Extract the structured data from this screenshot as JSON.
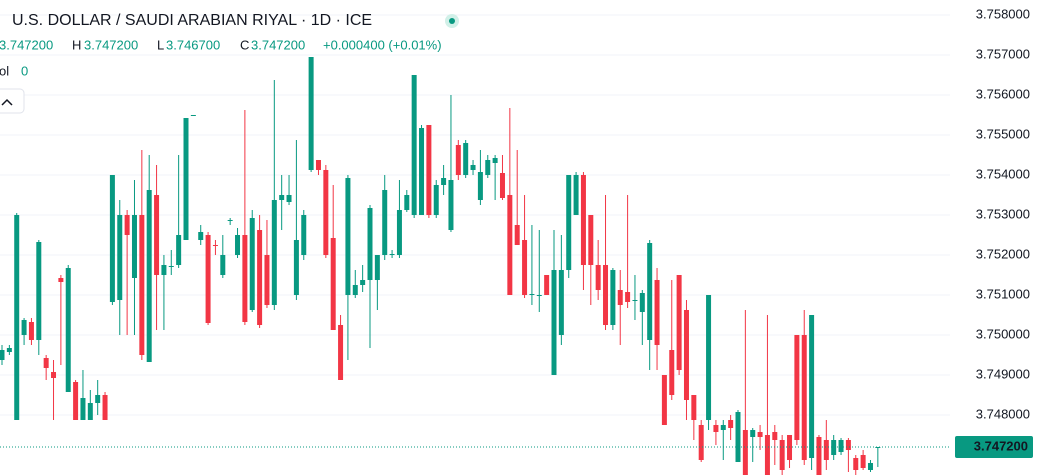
{
  "chart_data": {
    "type": "candlestick",
    "title": "U.S. DOLLAR / SAUDI ARABIAN RIYAL · 1D · ICE",
    "legend": {
      "open": "3.747200",
      "high_label": "H",
      "high": "3.747200",
      "low_label": "L",
      "low": "3.746700",
      "close_label": "C",
      "close": "3.747200",
      "change": "+0.000400 (+0.01%)"
    },
    "volume": {
      "label": "ol",
      "value": "0"
    },
    "up_color": "#089981",
    "down_color": "#f23645",
    "ylim": [
      3.7465,
      3.758375
    ],
    "yticks": [
      {
        "value": 3.758,
        "label": "3.758000"
      },
      {
        "value": 3.757,
        "label": "3.757000"
      },
      {
        "value": 3.756,
        "label": "3.756000"
      },
      {
        "value": 3.755,
        "label": "3.755000"
      },
      {
        "value": 3.754,
        "label": "3.754000"
      },
      {
        "value": 3.753,
        "label": "3.753000"
      },
      {
        "value": 3.752,
        "label": "3.752000"
      },
      {
        "value": 3.751,
        "label": "3.751000"
      },
      {
        "value": 3.75,
        "label": "3.750000"
      },
      {
        "value": 3.749,
        "label": "3.749000"
      },
      {
        "value": 3.748,
        "label": "3.748000"
      }
    ],
    "last_price": {
      "value": 3.7472,
      "label": "3.747200"
    },
    "grid": true,
    "ohlc": [
      [
        3.749375,
        3.74975,
        3.74925,
        3.749625
      ],
      [
        3.749575,
        3.74975,
        3.7495,
        3.749675
      ],
      [
        3.747875,
        3.75305,
        3.747875,
        3.753
      ],
      [
        3.75,
        3.750425,
        3.74975,
        3.750375
      ],
      [
        3.750325,
        3.750425,
        3.74975,
        3.749875
      ],
      [
        3.749875,
        3.752375,
        3.7495,
        3.752325
      ],
      [
        3.749425,
        3.7495,
        3.748875,
        3.749175
      ],
      [
        3.749075,
        3.749375,
        3.747875,
        3.748925
      ],
      [
        3.751425,
        3.7515,
        3.74925,
        3.751325
      ],
      [
        3.748575,
        3.75175,
        3.748575,
        3.751675
      ],
      [
        3.748825,
        3.748875,
        3.747875,
        3.747875
      ],
      [
        3.747875,
        3.749125,
        3.747875,
        3.748425
      ],
      [
        3.747875,
        3.748625,
        3.747875,
        3.7483
      ],
      [
        3.7483,
        3.748875,
        3.748,
        3.7485
      ],
      [
        3.7485,
        3.748575,
        3.747875,
        3.747875
      ],
      [
        3.750825,
        3.754,
        3.75075,
        3.754
      ],
      [
        3.750875,
        3.753375,
        3.75,
        3.753
      ],
      [
        3.753,
        3.753125,
        3.75,
        3.7525
      ],
      [
        3.751425,
        3.753875,
        3.75,
        3.753
      ],
      [
        3.753,
        3.754625,
        3.749375,
        3.7495
      ],
      [
        3.749325,
        3.7545,
        3.749325,
        3.753625
      ],
      [
        3.7535,
        3.75425,
        3.750125,
        3.7515
      ],
      [
        3.7515,
        3.752,
        3.750125,
        3.75175
      ],
      [
        3.7517,
        3.752125,
        3.7515,
        3.751725
      ],
      [
        3.75175,
        3.7545,
        3.751675,
        3.7525
      ],
      [
        3.752375,
        3.755425,
        3.752375,
        3.755425
      ],
      [
        3.7555,
        3.7555,
        3.755475,
        3.7555
      ],
      [
        3.752375,
        3.75275,
        3.75225,
        3.752575
      ],
      [
        3.7525,
        3.752575,
        3.75025,
        3.7503
      ],
      [
        3.75225,
        3.752375,
        3.752,
        3.752225
      ],
      [
        3.7515,
        3.7525,
        3.751425,
        3.752
      ],
      [
        3.752875,
        3.752925,
        3.75275,
        3.752875
      ],
      [
        3.752,
        3.752675,
        3.751925,
        3.7525
      ],
      [
        3.7525,
        3.755625,
        3.75025,
        3.750325
      ],
      [
        3.750625,
        3.753125,
        3.750575,
        3.752925
      ],
      [
        3.752625,
        3.753,
        3.750175,
        3.75025
      ],
      [
        3.752,
        3.752875,
        3.750675,
        3.75075
      ],
      [
        3.75075,
        3.756375,
        3.750625,
        3.753375
      ],
      [
        3.753375,
        3.754,
        3.752625,
        3.7535
      ],
      [
        3.753325,
        3.754,
        3.75325,
        3.7535
      ],
      [
        3.751,
        3.754875,
        3.750875,
        3.752375
      ],
      [
        3.752,
        3.753125,
        3.751875,
        3.753
      ],
      [
        3.754125,
        3.75695,
        3.754075,
        3.75695
      ],
      [
        3.754375,
        3.754375,
        3.754,
        3.754125
      ],
      [
        3.754125,
        3.75425,
        3.751925,
        3.752
      ],
      [
        3.752425,
        3.75375,
        3.750125,
        3.750125
      ],
      [
        3.75025,
        3.7505,
        3.748875,
        3.748875
      ],
      [
        3.751,
        3.754,
        3.749375,
        3.753925
      ],
      [
        3.751,
        3.751625,
        3.750925,
        3.75125
      ],
      [
        3.75125,
        3.75175,
        3.751075,
        3.751375
      ],
      [
        3.751375,
        3.75325,
        3.749675,
        3.753175
      ],
      [
        3.751375,
        3.752,
        3.750625,
        3.752
      ],
      [
        3.752,
        3.754,
        3.751875,
        3.753625
      ],
      [
        3.752,
        3.752125,
        3.751925,
        3.752025
      ],
      [
        3.752,
        3.753875,
        3.751925,
        3.753125
      ],
      [
        3.753125,
        3.753625,
        3.753075,
        3.7535
      ],
      [
        3.753,
        3.7565,
        3.752925,
        3.7565
      ],
      [
        3.753,
        3.75525,
        3.753,
        3.755175
      ],
      [
        3.75525,
        3.75525,
        3.752925,
        3.753
      ],
      [
        3.753,
        3.753875,
        3.752925,
        3.75375
      ],
      [
        3.75375,
        3.75425,
        3.7535,
        3.753925
      ],
      [
        3.752625,
        3.756,
        3.752575,
        3.753875
      ],
      [
        3.75475,
        3.754875,
        3.753875,
        3.754
      ],
      [
        3.754,
        3.754875,
        3.753925,
        3.7548
      ],
      [
        3.754125,
        3.754375,
        3.754,
        3.75425
      ],
      [
        3.753375,
        3.754625,
        3.75325,
        3.754075
      ],
      [
        3.754,
        3.7545,
        3.753925,
        3.754375
      ],
      [
        3.7543,
        3.7545,
        3.753375,
        3.754425
      ],
      [
        3.75405,
        3.7545,
        3.753375,
        3.753425
      ],
      [
        3.7535,
        3.755675,
        3.751,
        3.751
      ],
      [
        3.75275,
        3.754625,
        3.75225,
        3.75225
      ],
      [
        3.752375,
        3.7535,
        3.750925,
        3.751
      ],
      [
        3.751,
        3.75275,
        3.75075,
        3.751025
      ],
      [
        3.751,
        3.752625,
        3.750575,
        3.751
      ],
      [
        3.7515,
        3.7515,
        3.751,
        3.751
      ],
      [
        3.749,
        3.752625,
        3.749,
        3.751625
      ],
      [
        3.75,
        3.7525,
        3.74975,
        3.751625
      ],
      [
        3.751625,
        3.754,
        3.751425,
        3.754
      ],
      [
        3.753,
        3.754075,
        3.753,
        3.754
      ],
      [
        3.754,
        3.754075,
        3.751125,
        3.75175
      ],
      [
        3.753,
        3.753,
        3.75075,
        3.75175
      ],
      [
        3.75175,
        3.752375,
        3.750875,
        3.751125
      ],
      [
        3.75175,
        3.7535,
        3.750125,
        3.75025
      ],
      [
        3.75025,
        3.751675,
        3.750125,
        3.751625
      ],
      [
        3.751125,
        3.751625,
        3.74975,
        3.75075
      ],
      [
        3.751075,
        3.7535,
        3.750675,
        3.750825
      ],
      [
        3.750875,
        3.7515,
        3.750375,
        3.750875
      ],
      [
        3.750575,
        3.751125,
        3.74975,
        3.75105
      ],
      [
        3.749875,
        3.752375,
        3.749125,
        3.7523
      ],
      [
        3.751375,
        3.751675,
        3.749125,
        3.74975
      ],
      [
        3.749,
        3.749,
        3.74775,
        3.74775
      ],
      [
        3.749625,
        3.751375,
        3.748375,
        3.7485
      ],
      [
        3.7515,
        3.7515,
        3.749,
        3.749125
      ],
      [
        3.750625,
        3.750875,
        3.747875,
        3.748375
      ],
      [
        3.7485,
        3.7485,
        3.747375,
        3.747875
      ],
      [
        3.74775,
        3.747875,
        3.746825,
        3.746875
      ],
      [
        3.747875,
        3.751,
        3.747625,
        3.751
      ],
      [
        3.74775,
        3.747875,
        3.74725,
        3.747575
      ],
      [
        3.747625,
        3.747875,
        3.746875,
        3.74775
      ],
      [
        3.747875,
        3.748,
        3.747375,
        3.747675
      ],
      [
        3.746825,
        3.748125,
        3.746825,
        3.748075
      ],
      [
        3.747625,
        3.750625,
        3.7465,
        3.7465
      ],
      [
        3.74745,
        3.747675,
        3.746825,
        3.747625
      ],
      [
        3.747575,
        3.74775,
        3.747125,
        3.74745
      ],
      [
        3.7475,
        3.7505,
        3.7465,
        3.7465
      ],
      [
        3.747575,
        3.74775,
        3.74675,
        3.747375
      ],
      [
        3.747375,
        3.7475,
        3.7465,
        3.746625
      ],
      [
        3.7475,
        3.7475,
        3.746675,
        3.746875
      ],
      [
        3.75,
        3.75,
        3.74725,
        3.747375
      ],
      [
        3.75,
        3.750625,
        3.74675,
        3.746875
      ],
      [
        3.746925,
        3.7505,
        3.746625,
        3.7505
      ],
      [
        3.74745,
        3.7475,
        3.7465,
        3.7465
      ],
      [
        3.747375,
        3.747875,
        3.746625,
        3.746875
      ],
      [
        3.747,
        3.7475,
        3.746875,
        3.747375
      ],
      [
        3.747075,
        3.747425,
        3.747,
        3.747375
      ],
      [
        3.747375,
        3.747425,
        3.746575,
        3.747125
      ],
      [
        3.746925,
        3.747,
        3.7465,
        3.746625
      ],
      [
        3.747,
        3.747125,
        3.746625,
        3.746675
      ],
      [
        3.746625,
        3.746875,
        3.746575,
        3.7468
      ],
      [
        3.7472,
        3.7472,
        3.7467,
        3.7472
      ]
    ]
  }
}
